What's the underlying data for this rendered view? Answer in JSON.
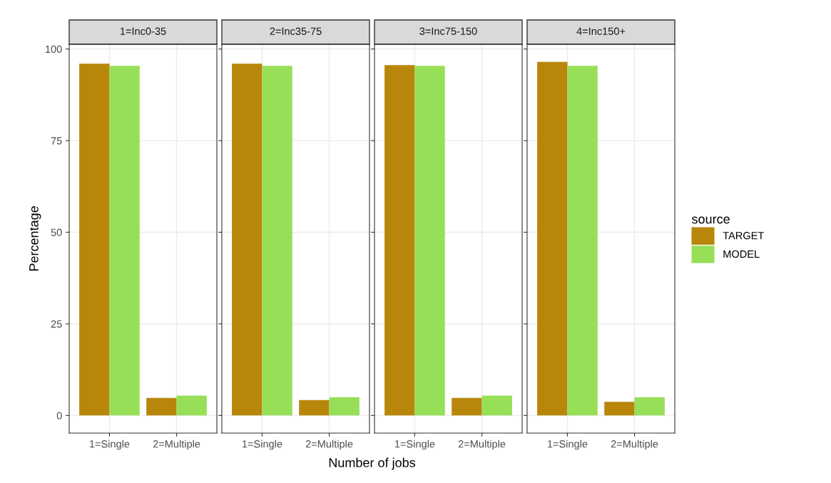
{
  "chart_data": [
    {
      "type": "bar",
      "title": "1=Inc0-35",
      "categories": [
        "1=Single",
        "2=Multiple"
      ],
      "ylabel": "Percentage",
      "ylim": [
        -4.8,
        101.3
      ],
      "yticks": [
        0,
        25,
        50,
        75,
        100
      ],
      "grid": true,
      "series": [
        {
          "color": "#b8860b",
          "values": [
            96.0,
            4.8
          ]
        },
        {
          "color": "#98df58",
          "values": [
            95.4,
            5.4
          ]
        }
      ]
    },
    {
      "type": "bar",
      "title": "2=Inc35-75",
      "categories": [
        "1=Single",
        "2=Multiple"
      ],
      "xlabel": "Number of jobs",
      "ylim": [
        -4.8,
        101.3
      ],
      "yticks": [
        0,
        25,
        50,
        75,
        100
      ],
      "grid": true,
      "tick_labels": "x",
      "series": [
        {
          "color": "#b8860b",
          "values": [
            96.0,
            4.2
          ]
        },
        {
          "color": "#98df58",
          "values": [
            95.4,
            5.0
          ]
        }
      ]
    },
    {
      "type": "bar",
      "title": "3=Inc75-150",
      "categories": [
        "1=Single",
        "2=Multiple"
      ],
      "ylim": [
        -4.8,
        101.3
      ],
      "yticks": [
        0,
        25,
        50,
        75,
        100
      ],
      "grid": true,
      "tick_labels": "x",
      "series": [
        {
          "color": "#b8860b",
          "values": [
            95.6,
            4.8
          ]
        },
        {
          "color": "#98df58",
          "values": [
            95.4,
            5.4
          ]
        }
      ]
    },
    {
      "type": "bar",
      "title": "4=Inc150+",
      "categories": [
        "1=Single",
        "2=Multiple"
      ],
      "ylim": [
        -4.8,
        101.3
      ],
      "yticks": [
        0,
        25,
        50,
        75,
        100
      ],
      "grid": true,
      "tick_labels": "x",
      "legend": "right",
      "legend_title": "source",
      "series": [
        {
          "name": "TARGET",
          "color": "#b8860b",
          "values": [
            96.5,
            3.7
          ]
        },
        {
          "name": "MODEL",
          "color": "#98df58",
          "values": [
            95.4,
            5.0
          ]
        }
      ]
    }
  ]
}
